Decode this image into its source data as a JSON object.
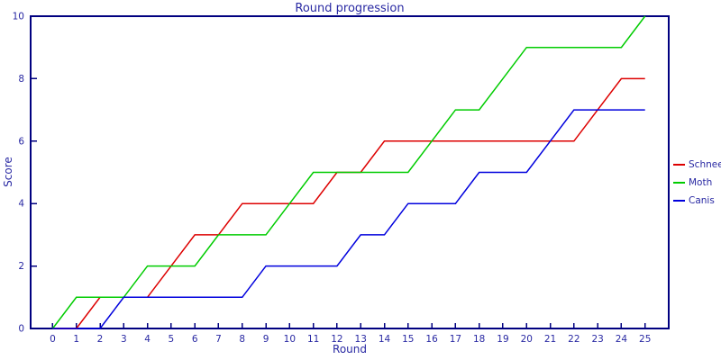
{
  "chart_data": {
    "type": "line",
    "title": "Round progression",
    "xlabel": "Round",
    "ylabel": "Score",
    "x": [
      0,
      1,
      2,
      3,
      4,
      5,
      6,
      7,
      8,
      9,
      10,
      11,
      12,
      13,
      14,
      15,
      16,
      17,
      18,
      19,
      20,
      21,
      22,
      23,
      24,
      25
    ],
    "series": [
      {
        "name": "Schnee",
        "color": "#dd0000",
        "values": [
          0,
          0,
          1,
          1,
          1,
          2,
          3,
          3,
          4,
          4,
          4,
          4,
          5,
          5,
          6,
          6,
          6,
          6,
          6,
          6,
          6,
          6,
          6,
          7,
          8,
          8
        ]
      },
      {
        "name": "Moth",
        "color": "#00cc00",
        "values": [
          0,
          1,
          1,
          1,
          2,
          2,
          2,
          3,
          3,
          3,
          4,
          5,
          5,
          5,
          5,
          5,
          6,
          7,
          7,
          8,
          9,
          9,
          9,
          9,
          9,
          10
        ]
      },
      {
        "name": "Canis",
        "color": "#0000dd",
        "values": [
          0,
          0,
          0,
          1,
          1,
          1,
          1,
          1,
          1,
          2,
          2,
          2,
          2,
          3,
          3,
          4,
          4,
          4,
          5,
          5,
          5,
          6,
          7,
          7,
          7,
          7
        ]
      }
    ],
    "x_ticks": [
      0,
      1,
      2,
      3,
      4,
      5,
      6,
      7,
      8,
      9,
      10,
      11,
      12,
      13,
      14,
      15,
      16,
      17,
      18,
      19,
      20,
      21,
      22,
      23,
      24,
      25
    ],
    "y_ticks": [
      0,
      2,
      4,
      6,
      8,
      10
    ],
    "xlim": [
      -0.93,
      26.0
    ],
    "ylim": [
      0,
      10
    ],
    "grid": false,
    "legend_position": "right",
    "axis_color": "#000080",
    "text_color": "#2929a3"
  }
}
